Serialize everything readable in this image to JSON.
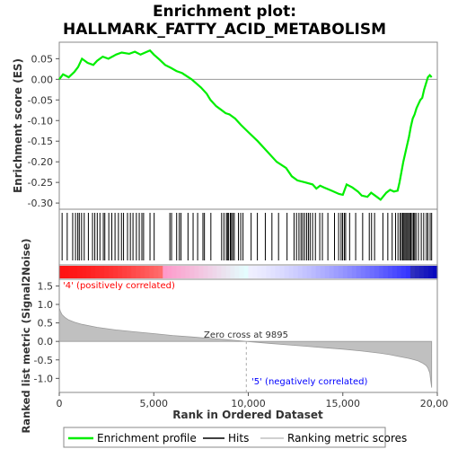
{
  "chart_data": {
    "type": "line",
    "title": [
      "Enrichment plot:",
      "HALLMARK_FATTY_ACID_METABOLISM"
    ],
    "xlabel": "Rank in Ordered Dataset",
    "xlim": [
      0,
      20000
    ],
    "xticks": [
      0,
      5000,
      10000,
      15000,
      20000
    ],
    "xtick_labels": [
      "0",
      "5,000",
      "10,000",
      "15,000",
      "20,000"
    ],
    "es_panel": {
      "ylabel": "Enrichment score (ES)",
      "ylim": [
        -0.315,
        0.09
      ],
      "yticks": [
        0.05,
        0.0,
        -0.05,
        -0.1,
        -0.15,
        -0.2,
        -0.25,
        -0.3
      ],
      "ytick_labels": [
        "0.05",
        "0.00",
        "-0.05",
        "-0.10",
        "-0.15",
        "-0.20",
        "-0.25",
        "-0.30"
      ],
      "series_name": "Enrichment profile",
      "color": "#00ee00",
      "x": [
        0,
        200,
        500,
        800,
        1000,
        1200,
        1500,
        1800,
        2000,
        2300,
        2600,
        3000,
        3300,
        3700,
        4000,
        4300,
        4600,
        4800,
        5000,
        5300,
        5600,
        5900,
        6200,
        6500,
        7000,
        7500,
        7800,
        8000,
        8300,
        8600,
        8800,
        9000,
        9300,
        9600,
        10000,
        10500,
        11000,
        11500,
        12000,
        12300,
        12600,
        13000,
        13400,
        13600,
        13800,
        14000,
        14400,
        14800,
        15000,
        15200,
        15500,
        15800,
        16000,
        16300,
        16500,
        16800,
        17000,
        17300,
        17500,
        17700,
        17900,
        18000,
        18100,
        18200,
        18300,
        18400,
        18500,
        18600,
        18700,
        18800,
        18900,
        19000,
        19100,
        19200,
        19300,
        19400,
        19500,
        19600,
        19700
      ],
      "values": [
        0.0,
        0.012,
        0.005,
        0.018,
        0.03,
        0.05,
        0.04,
        0.035,
        0.045,
        0.055,
        0.05,
        0.06,
        0.065,
        0.062,
        0.067,
        0.06,
        0.066,
        0.07,
        0.06,
        0.048,
        0.035,
        0.028,
        0.02,
        0.015,
        0.0,
        -0.02,
        -0.035,
        -0.05,
        -0.065,
        -0.075,
        -0.082,
        -0.085,
        -0.095,
        -0.11,
        -0.128,
        -0.15,
        -0.175,
        -0.2,
        -0.215,
        -0.235,
        -0.245,
        -0.25,
        -0.255,
        -0.265,
        -0.258,
        -0.262,
        -0.27,
        -0.278,
        -0.28,
        -0.255,
        -0.262,
        -0.272,
        -0.282,
        -0.285,
        -0.275,
        -0.285,
        -0.292,
        -0.275,
        -0.268,
        -0.272,
        -0.27,
        -0.25,
        -0.225,
        -0.2,
        -0.18,
        -0.16,
        -0.14,
        -0.115,
        -0.095,
        -0.085,
        -0.07,
        -0.06,
        -0.05,
        -0.045,
        -0.025,
        -0.01,
        0.005,
        0.01,
        0.005
      ]
    },
    "hits": {
      "series_name": "Hits",
      "positions": [
        150,
        420,
        710,
        860,
        980,
        1060,
        1180,
        1320,
        1540,
        1760,
        1880,
        2010,
        2150,
        2330,
        2410,
        2620,
        2780,
        2950,
        3130,
        3290,
        3400,
        3610,
        3760,
        3900,
        4080,
        4230,
        4370,
        4460,
        4800,
        5020,
        5850,
        5940,
        6210,
        6350,
        6440,
        6810,
        7080,
        7320,
        7600,
        7680,
        8020,
        8590,
        8710,
        8840,
        8900,
        8960,
        9050,
        9110,
        9180,
        9260,
        9480,
        9600,
        9720,
        10150,
        10480,
        10900,
        11250,
        11600,
        12050,
        12420,
        12550,
        12680,
        12790,
        12880,
        12980,
        13090,
        13180,
        13270,
        13400,
        13550,
        13780,
        13920,
        14210,
        14560,
        14780,
        14910,
        14990,
        15080,
        15150,
        15360,
        15680,
        16050,
        16400,
        16520,
        16680,
        17120,
        17380,
        17610,
        17790,
        17920,
        18030,
        18100,
        18170,
        18230,
        18290,
        18350,
        18420,
        18480,
        18540,
        18600,
        18670,
        18740,
        18800,
        18870,
        19000,
        19150,
        19280,
        19420,
        19500,
        19620,
        19700
      ]
    },
    "ranked_panel": {
      "ylabel": "Ranked list metric (Signal2Noise)",
      "ylim": [
        -1.38,
        1.68
      ],
      "yticks": [
        1.5,
        1.0,
        0.5,
        0.0,
        -0.5,
        -1.0
      ],
      "ytick_labels": [
        "1.5",
        "1.0",
        "0.5",
        "0.0",
        "-0.5",
        "-1.0"
      ],
      "series_name": "Ranking metric scores",
      "color": "#c0c0c0",
      "x": [
        0,
        50,
        150,
        300,
        500,
        800,
        1200,
        2000,
        3000,
        4000,
        5000,
        6000,
        7000,
        8000,
        9000,
        9895,
        11000,
        12000,
        13000,
        14000,
        15000,
        16000,
        17000,
        17500,
        18000,
        18500,
        18800,
        19000,
        19200,
        19400,
        19500,
        19600,
        19650,
        19700
      ],
      "values": [
        0.92,
        0.82,
        0.72,
        0.65,
        0.58,
        0.52,
        0.46,
        0.38,
        0.31,
        0.26,
        0.21,
        0.16,
        0.12,
        0.08,
        0.04,
        0.0,
        -0.05,
        -0.09,
        -0.13,
        -0.17,
        -0.21,
        -0.26,
        -0.32,
        -0.36,
        -0.41,
        -0.46,
        -0.5,
        -0.53,
        -0.58,
        -0.65,
        -0.72,
        -0.85,
        -1.05,
        -1.25
      ]
    },
    "annotations": {
      "positive": "'4' (positively correlated)",
      "negative": "'5' (negatively correlated)",
      "zero_cross": "Zero cross at 9895",
      "zero_cross_rank": 9895,
      "positive_color": "#ff0000",
      "negative_color": "#0000ff"
    },
    "legend": [
      {
        "label": "Enrichment profile",
        "color": "#00ee00"
      },
      {
        "label": "Hits",
        "color": "#000000"
      },
      {
        "label": "Ranking metric scores",
        "color": "#c0c0c0"
      }
    ],
    "legend_position": "bottom"
  }
}
